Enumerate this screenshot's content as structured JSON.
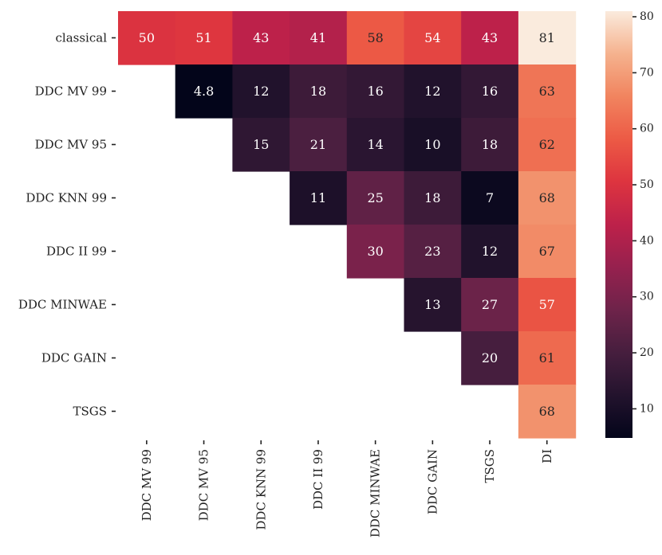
{
  "chart_data": {
    "type": "heatmap",
    "rows": [
      "classical",
      "DDC MV 99",
      "DDC MV 95",
      "DDC KNN 99",
      "DDC II 99",
      "DDC MINWAE",
      "DDC GAIN",
      "TSGS"
    ],
    "columns": [
      "DDC MV 99",
      "DDC MV 95",
      "DDC KNN 99",
      "DDC II 99",
      "DDC MINWAE",
      "DDC GAIN",
      "TSGS",
      "DI"
    ],
    "values": [
      [
        50,
        51,
        43,
        41,
        58,
        54,
        43,
        81
      ],
      [
        null,
        4.8,
        12,
        18,
        16,
        12,
        16,
        63
      ],
      [
        null,
        null,
        15,
        21,
        14,
        10,
        18,
        62
      ],
      [
        null,
        null,
        null,
        11,
        25,
        18,
        7,
        68
      ],
      [
        null,
        null,
        null,
        null,
        30,
        23,
        12,
        67
      ],
      [
        null,
        null,
        null,
        null,
        null,
        13,
        27,
        57
      ],
      [
        null,
        null,
        null,
        null,
        null,
        null,
        20,
        61
      ],
      [
        null,
        null,
        null,
        null,
        null,
        null,
        null,
        68
      ]
    ],
    "labels": [
      [
        "50",
        "51",
        "43",
        "41",
        "58",
        "54",
        "43",
        "81"
      ],
      [
        null,
        "4.8",
        "12",
        "18",
        "16",
        "12",
        "16",
        "63"
      ],
      [
        null,
        null,
        "15",
        "21",
        "14",
        "10",
        "18",
        "62"
      ],
      [
        null,
        null,
        null,
        "11",
        "25",
        "18",
        "7",
        "68"
      ],
      [
        null,
        null,
        null,
        null,
        "30",
        "23",
        "12",
        "67"
      ],
      [
        null,
        null,
        null,
        null,
        null,
        "13",
        "27",
        "57"
      ],
      [
        null,
        null,
        null,
        null,
        null,
        null,
        "20",
        "61"
      ],
      [
        null,
        null,
        null,
        null,
        null,
        null,
        null,
        "68"
      ]
    ],
    "colorbar": {
      "min": 4.8,
      "max": 81,
      "ticks": [
        10,
        20,
        30,
        40,
        50,
        60,
        70,
        80
      ],
      "tick_labels": [
        "10",
        "20",
        "30",
        "40",
        "50",
        "60",
        "70",
        "80"
      ]
    },
    "colormap": "rocket",
    "colors": {
      "text_dark_cell": "#ffffff",
      "text_light_cell": "#262626",
      "axis": "#222222"
    }
  }
}
